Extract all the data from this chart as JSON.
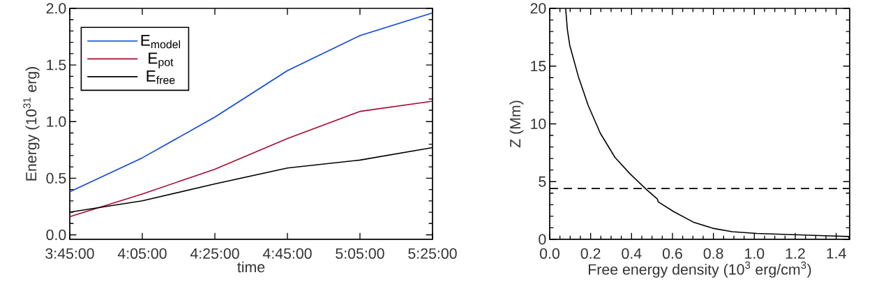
{
  "chart_data": [
    {
      "type": "line",
      "xlabel": "time",
      "ylabel": "Energy (10$^{31}$ erg)",
      "x": [
        3.75,
        4.0833,
        4.4167,
        4.75,
        5.0833,
        5.4167
      ],
      "series": [
        {
          "name": "E$_{model}$",
          "color": "#0b46d8",
          "values": [
            0.38,
            0.68,
            1.04,
            1.45,
            1.76,
            1.96
          ]
        },
        {
          "name": "E$_{pot}$",
          "color": "#a50a30",
          "values": [
            0.16,
            0.36,
            0.58,
            0.85,
            1.09,
            1.18
          ]
        },
        {
          "name": "E$_{free}$",
          "color": "#000000",
          "values": [
            0.2,
            0.3,
            0.45,
            0.59,
            0.66,
            0.77
          ]
        }
      ],
      "xlim": [
        3.75,
        5.4167
      ],
      "xticks": [
        {
          "value": 3.75,
          "label": "3:45:00"
        },
        {
          "value": 4.0833,
          "label": "4:05:00"
        },
        {
          "value": 4.4167,
          "label": "4:25:00"
        },
        {
          "value": 4.75,
          "label": "4:45:00"
        },
        {
          "value": 5.0833,
          "label": "5:05:00"
        },
        {
          "value": 5.4167,
          "label": "5:25:00"
        }
      ],
      "ylim": [
        -0.04,
        2.0
      ],
      "yticks": [
        {
          "value": 0,
          "label": "0.0"
        },
        {
          "value": 0.5,
          "label": "0.5"
        },
        {
          "value": 1,
          "label": "1.0"
        },
        {
          "value": 1.5,
          "label": "1.5"
        },
        {
          "value": 2,
          "label": "2.0"
        }
      ],
      "legend": "top left"
    },
    {
      "type": "line",
      "xlabel": "Free energy density (10$^{3}$ erg/cm$^{3}$)",
      "ylabel": "Z (Mm)",
      "series": [
        {
          "color": "#000000",
          "x": [
            0.078,
            0.086,
            0.098,
            0.14,
            0.188,
            0.247,
            0.319,
            0.391,
            0.474,
            0.526,
            0.53,
            0.606,
            0.701,
            0.797,
            0.892,
            1.012,
            1.191,
            1.37,
            1.46,
            1.466
          ],
          "values": [
            20,
            18.2,
            16.8,
            14.1,
            11.6,
            9.2,
            7.1,
            5.7,
            4.3,
            3.5,
            3.25,
            2.4,
            1.5,
            0.96,
            0.66,
            0.51,
            0.41,
            0.3,
            0.25,
            0
          ]
        }
      ],
      "xlim": [
        0,
        1.466
      ],
      "xticks": [
        {
          "value": 0,
          "label": "0.0"
        },
        {
          "value": 0.2,
          "label": "0.2"
        },
        {
          "value": 0.4,
          "label": "0.4"
        },
        {
          "value": 0.6,
          "label": "0.6"
        },
        {
          "value": 0.8,
          "label": "0.8"
        },
        {
          "value": 1,
          "label": "1.0"
        },
        {
          "value": 1.2,
          "label": "1.2"
        },
        {
          "value": 1.4,
          "label": "1.4"
        }
      ],
      "ylim": [
        0,
        20
      ],
      "yticks": [
        0,
        5,
        10,
        15,
        20
      ],
      "ref_lines": [
        {
          "axis": "y",
          "value": 4.4,
          "line_style": "dashed",
          "color": "#000000"
        }
      ]
    }
  ]
}
